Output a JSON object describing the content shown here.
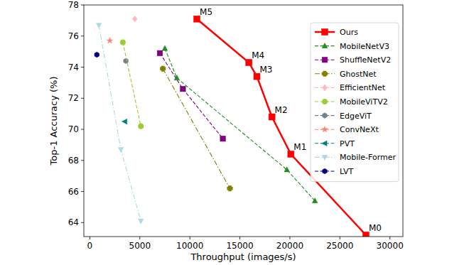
{
  "chart_data": {
    "type": "line",
    "x_label": "Throughput (images/s)",
    "y_label": "Top-1 Accuracy (%)",
    "xlim": [
      -600,
      31300
    ],
    "ylim": [
      63.1,
      78
    ],
    "xticks": [
      0,
      5000,
      10000,
      15000,
      20000,
      25000,
      30000
    ],
    "yticks": [
      64,
      66,
      68,
      70,
      72,
      74,
      76,
      78
    ],
    "grid": false,
    "legend": "upper right",
    "series": [
      {
        "name": "Ours",
        "color": "#ff0000",
        "marker": "square",
        "line_style": "solid",
        "x": [
          27600,
          20100,
          18200,
          16700,
          15900,
          10700
        ],
        "values": [
          63.2,
          68.4,
          70.8,
          73.4,
          74.3,
          77.1
        ],
        "point_labels": [
          "M0",
          "M1",
          "M2",
          "M3",
          "M4",
          "M5"
        ]
      },
      {
        "name": "MobileNetV3",
        "color": "#228b22",
        "marker": "triangle",
        "line_style": "dashed",
        "x": [
          7500,
          8700,
          19700,
          22500
        ],
        "values": [
          75.2,
          73.3,
          67.4,
          65.4
        ]
      },
      {
        "name": "ShuffleNetV2",
        "color": "#800080",
        "marker": "square",
        "line_style": "dashed",
        "x": [
          7000,
          9300,
          13300
        ],
        "values": [
          74.9,
          72.6,
          69.4
        ]
      },
      {
        "name": "GhostNet",
        "color": "#808000",
        "marker": "plus",
        "line_style": "dashdot",
        "x": [
          7300,
          14000
        ],
        "values": [
          73.9,
          66.2
        ]
      },
      {
        "name": "EfficientNet",
        "color": "#ffb6c1",
        "marker": "diamond",
        "line_style": "dashed",
        "x": [
          4500
        ],
        "values": [
          77.1
        ]
      },
      {
        "name": "MobileViTV2",
        "color": "#9acd32",
        "marker": "circle",
        "line_style": "dashed",
        "x": [
          3300,
          5100
        ],
        "values": [
          75.6,
          70.2
        ]
      },
      {
        "name": "EdgeViT",
        "color": "#708090",
        "marker": "hexagon",
        "line_style": "dashed",
        "x": [
          3600
        ],
        "values": [
          74.4
        ]
      },
      {
        "name": "ConvNeXt",
        "color": "#fa8072",
        "marker": "star",
        "line_style": "dashed",
        "x": [
          2000
        ],
        "values": [
          75.7
        ]
      },
      {
        "name": "PVT",
        "color": "#008080",
        "marker": "triangle-left",
        "line_style": "dashed",
        "x": [
          3500
        ],
        "values": [
          70.5
        ]
      },
      {
        "name": "Mobile-Former",
        "color": "#add8e6",
        "marker": "triangle-down",
        "line_style": "dashdot",
        "x": [
          900,
          3100,
          5100
        ],
        "values": [
          76.7,
          68.7,
          64.1
        ]
      },
      {
        "name": "LVT",
        "color": "#000080",
        "marker": "hexagon",
        "line_style": "dashed",
        "x": [
          700
        ],
        "values": [
          74.8
        ]
      }
    ]
  }
}
